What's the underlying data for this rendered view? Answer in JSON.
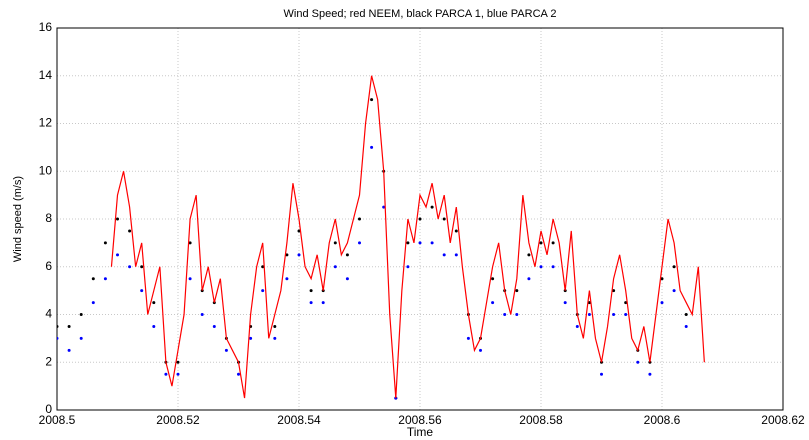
{
  "chart_data": {
    "type": "line",
    "title": "Wind Speed; red NEEM, black PARCA 1, blue PARCA 2",
    "xlabel": "Time",
    "ylabel": "Wind speed (m/s)",
    "xlim": [
      2008.5,
      2008.62
    ],
    "xticks": [
      2008.5,
      2008.52,
      2008.54,
      2008.56,
      2008.58,
      2008.6,
      2008.62
    ],
    "ylim": [
      0,
      16
    ],
    "yticks": [
      0,
      2,
      4,
      6,
      8,
      10,
      12,
      14,
      16
    ],
    "grid": true,
    "series": [
      {
        "color": "#ff0000",
        "style": "line",
        "x": [
          2008.509,
          2008.51,
          2008.511,
          2008.512,
          2008.513,
          2008.514,
          2008.515,
          2008.516,
          2008.517,
          2008.518,
          2008.519,
          2008.52,
          2008.521,
          2008.522,
          2008.523,
          2008.524,
          2008.525,
          2008.526,
          2008.527,
          2008.528,
          2008.529,
          2008.53,
          2008.531,
          2008.532,
          2008.533,
          2008.534,
          2008.535,
          2008.536,
          2008.537,
          2008.538,
          2008.539,
          2008.54,
          2008.541,
          2008.542,
          2008.543,
          2008.544,
          2008.545,
          2008.546,
          2008.547,
          2008.548,
          2008.549,
          2008.55,
          2008.551,
          2008.552,
          2008.553,
          2008.554,
          2008.555,
          2008.556,
          2008.557,
          2008.558,
          2008.559,
          2008.56,
          2008.561,
          2008.562,
          2008.563,
          2008.564,
          2008.565,
          2008.566,
          2008.567,
          2008.568,
          2008.569,
          2008.57,
          2008.571,
          2008.572,
          2008.573,
          2008.574,
          2008.575,
          2008.576,
          2008.577,
          2008.578,
          2008.579,
          2008.58,
          2008.581,
          2008.582,
          2008.583,
          2008.584,
          2008.585,
          2008.586,
          2008.587,
          2008.588,
          2008.589,
          2008.59,
          2008.591,
          2008.592,
          2008.593,
          2008.594,
          2008.595,
          2008.596,
          2008.597,
          2008.598,
          2008.599,
          2008.6,
          2008.601,
          2008.602,
          2008.603,
          2008.604,
          2008.605,
          2008.606,
          2008.607
        ],
        "values": [
          6,
          9,
          10,
          8.5,
          6,
          7,
          4,
          5,
          6,
          2,
          1,
          2.5,
          4,
          8,
          9,
          5,
          6,
          4.5,
          5.5,
          3,
          2.5,
          2,
          0.5,
          4,
          6,
          7,
          3,
          4,
          5,
          7,
          9.5,
          8,
          6,
          5.5,
          6.5,
          5,
          7,
          8,
          6.5,
          7,
          8,
          9,
          12,
          14,
          13,
          10,
          4,
          0.5,
          5,
          8,
          7,
          9,
          8.5,
          9.5,
          8,
          9,
          7,
          8.5,
          6,
          4,
          2.5,
          3,
          4.5,
          6,
          7,
          5,
          4,
          5.5,
          9,
          7,
          6,
          7.5,
          6.5,
          8,
          7,
          5,
          7.5,
          4,
          3,
          5,
          3,
          2,
          3.5,
          5.5,
          6.5,
          5,
          3,
          2.5,
          3.5,
          2,
          4,
          6,
          8,
          7,
          5,
          4.5,
          4,
          6,
          2
        ]
      },
      {
        "color": "#000000",
        "style": "dots",
        "x": [
          2008.5,
          2008.502,
          2008.504,
          2008.506,
          2008.508,
          2008.51,
          2008.512,
          2008.514,
          2008.516,
          2008.518,
          2008.52,
          2008.522,
          2008.524,
          2008.526,
          2008.528,
          2008.53,
          2008.532,
          2008.534,
          2008.536,
          2008.538,
          2008.54,
          2008.542,
          2008.544,
          2008.546,
          2008.548,
          2008.55,
          2008.552,
          2008.554,
          2008.556,
          2008.558,
          2008.56,
          2008.562,
          2008.564,
          2008.566,
          2008.568,
          2008.57,
          2008.572,
          2008.574,
          2008.576,
          2008.578,
          2008.58,
          2008.582,
          2008.584,
          2008.586,
          2008.588,
          2008.59,
          2008.592,
          2008.594,
          2008.596,
          2008.598,
          2008.6,
          2008.602,
          2008.604
        ],
        "values": [
          3.5,
          3.5,
          4,
          5.5,
          7,
          8,
          7.5,
          6,
          4.5,
          2,
          2,
          7,
          5,
          4.5,
          3,
          2,
          3.5,
          6,
          3.5,
          6.5,
          7.5,
          5,
          5,
          7,
          6.5,
          8,
          13,
          10,
          0.5,
          7,
          8,
          8.5,
          8,
          7.5,
          4,
          3,
          5.5,
          5,
          5,
          6.5,
          7,
          7,
          5,
          4,
          4.5,
          2,
          5,
          4.5,
          2.5,
          2,
          5.5,
          6,
          4
        ]
      },
      {
        "color": "#0000ff",
        "style": "dots",
        "x": [
          2008.5,
          2008.502,
          2008.504,
          2008.506,
          2008.508,
          2008.51,
          2008.512,
          2008.514,
          2008.516,
          2008.518,
          2008.52,
          2008.522,
          2008.524,
          2008.526,
          2008.528,
          2008.53,
          2008.532,
          2008.534,
          2008.536,
          2008.538,
          2008.54,
          2008.542,
          2008.544,
          2008.546,
          2008.548,
          2008.55,
          2008.552,
          2008.554,
          2008.556,
          2008.558,
          2008.56,
          2008.562,
          2008.564,
          2008.566,
          2008.568,
          2008.57,
          2008.572,
          2008.574,
          2008.576,
          2008.578,
          2008.58,
          2008.582,
          2008.584,
          2008.586,
          2008.588,
          2008.59,
          2008.592,
          2008.594,
          2008.596,
          2008.598,
          2008.6,
          2008.602,
          2008.604
        ],
        "values": [
          3,
          2.5,
          3,
          4.5,
          5.5,
          6.5,
          6,
          5,
          3.5,
          1.5,
          1.5,
          5.5,
          4,
          3.5,
          2.5,
          1.5,
          3,
          5,
          3,
          5.5,
          6.5,
          4.5,
          4.5,
          6,
          5.5,
          7,
          11,
          8.5,
          0.5,
          6,
          7,
          7,
          6.5,
          6.5,
          3,
          2.5,
          4.5,
          4,
          4,
          5.5,
          6,
          6,
          4.5,
          3.5,
          4,
          1.5,
          4,
          4,
          2,
          1.5,
          4.5,
          5,
          3.5
        ]
      }
    ]
  }
}
